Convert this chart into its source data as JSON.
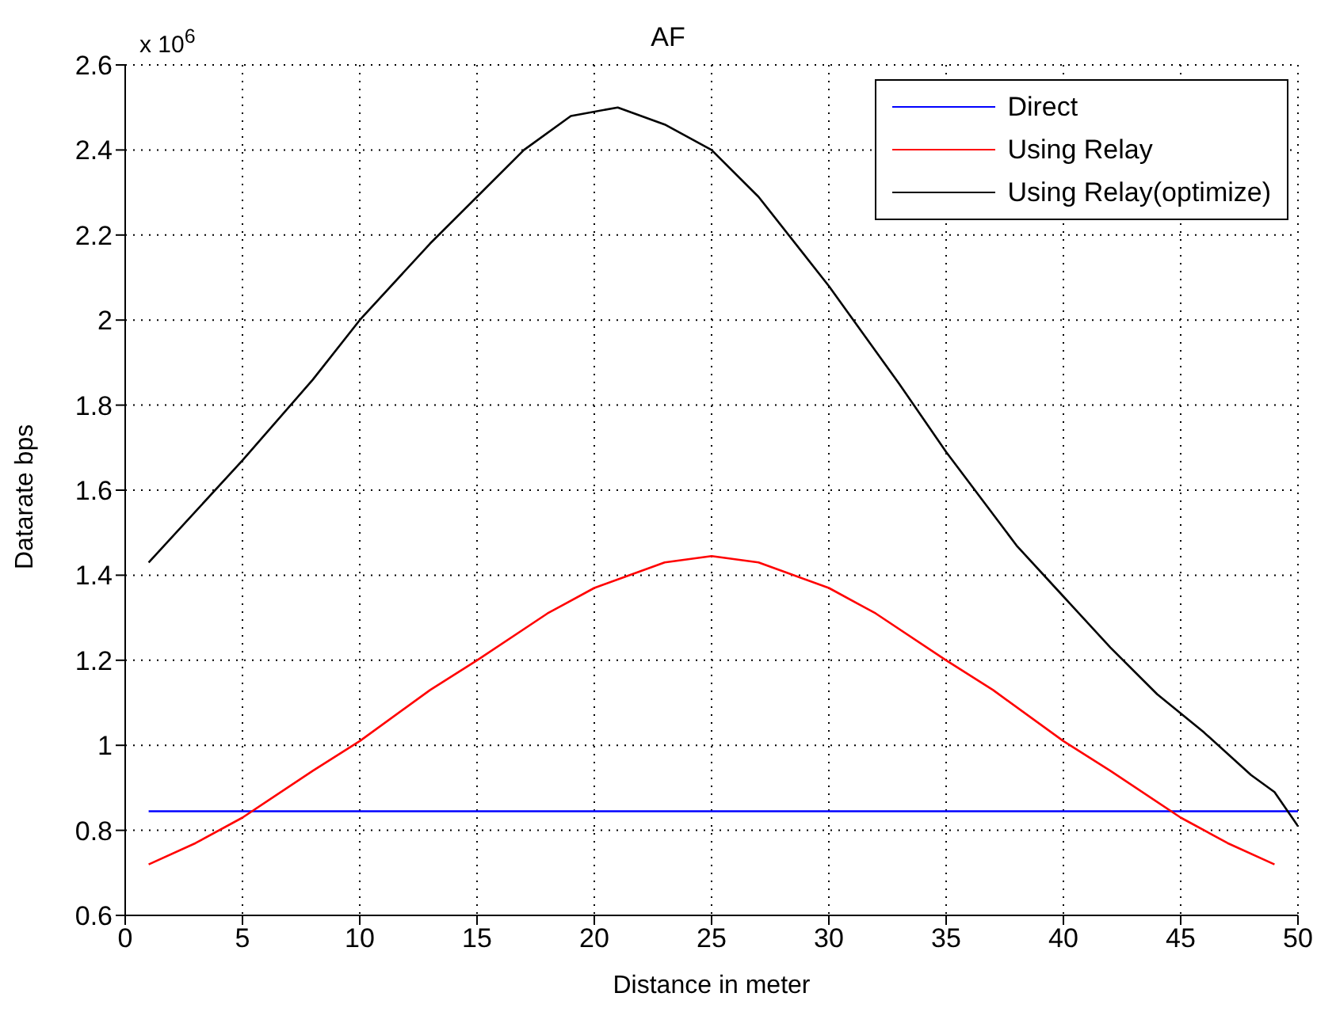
{
  "chart_data": {
    "type": "line",
    "title": "AF",
    "xlabel": "Distance in meter",
    "ylabel": "Datarate bps",
    "annotations": [
      "x 10$^{6}$"
    ],
    "xlim": [
      0,
      50
    ],
    "xticks": [
      0,
      5,
      10,
      15,
      20,
      25,
      30,
      35,
      40,
      45,
      50
    ],
    "ylim": [
      0.6,
      2.6
    ],
    "yticks": [
      0.6,
      0.8,
      1,
      1.2,
      1.4,
      1.6,
      1.8,
      2,
      2.2,
      2.4,
      2.6
    ],
    "grid": true,
    "legend": "top right",
    "marker": "none",
    "line_style": "solid",
    "series": [
      {
        "name": "Direct",
        "color": "#0000ff",
        "x": [
          1,
          50
        ],
        "values": [
          0.845,
          0.845
        ]
      },
      {
        "name": "Using Relay",
        "color": "#ff0000",
        "x": [
          1,
          3,
          5,
          8,
          10,
          13,
          15,
          18,
          20,
          22,
          23,
          25,
          27,
          28,
          30,
          32,
          35,
          37,
          40,
          42,
          45,
          47,
          49
        ],
        "values": [
          0.72,
          0.77,
          0.83,
          0.94,
          1.01,
          1.13,
          1.2,
          1.31,
          1.37,
          1.41,
          1.43,
          1.445,
          1.43,
          1.41,
          1.37,
          1.31,
          1.2,
          1.13,
          1.01,
          0.94,
          0.83,
          0.77,
          0.72
        ]
      },
      {
        "name": "Using Relay(optimize)",
        "color": "#000000",
        "x": [
          1,
          3,
          5,
          8,
          10,
          13,
          15,
          17,
          19,
          21,
          23,
          25,
          27,
          30,
          33,
          35,
          38,
          40,
          42,
          44,
          46,
          48,
          49,
          50
        ],
        "values": [
          1.43,
          1.55,
          1.67,
          1.86,
          2.0,
          2.18,
          2.29,
          2.4,
          2.48,
          2.5,
          2.46,
          2.4,
          2.29,
          2.08,
          1.85,
          1.69,
          1.47,
          1.35,
          1.23,
          1.12,
          1.03,
          0.93,
          0.89,
          0.81
        ]
      }
    ]
  }
}
